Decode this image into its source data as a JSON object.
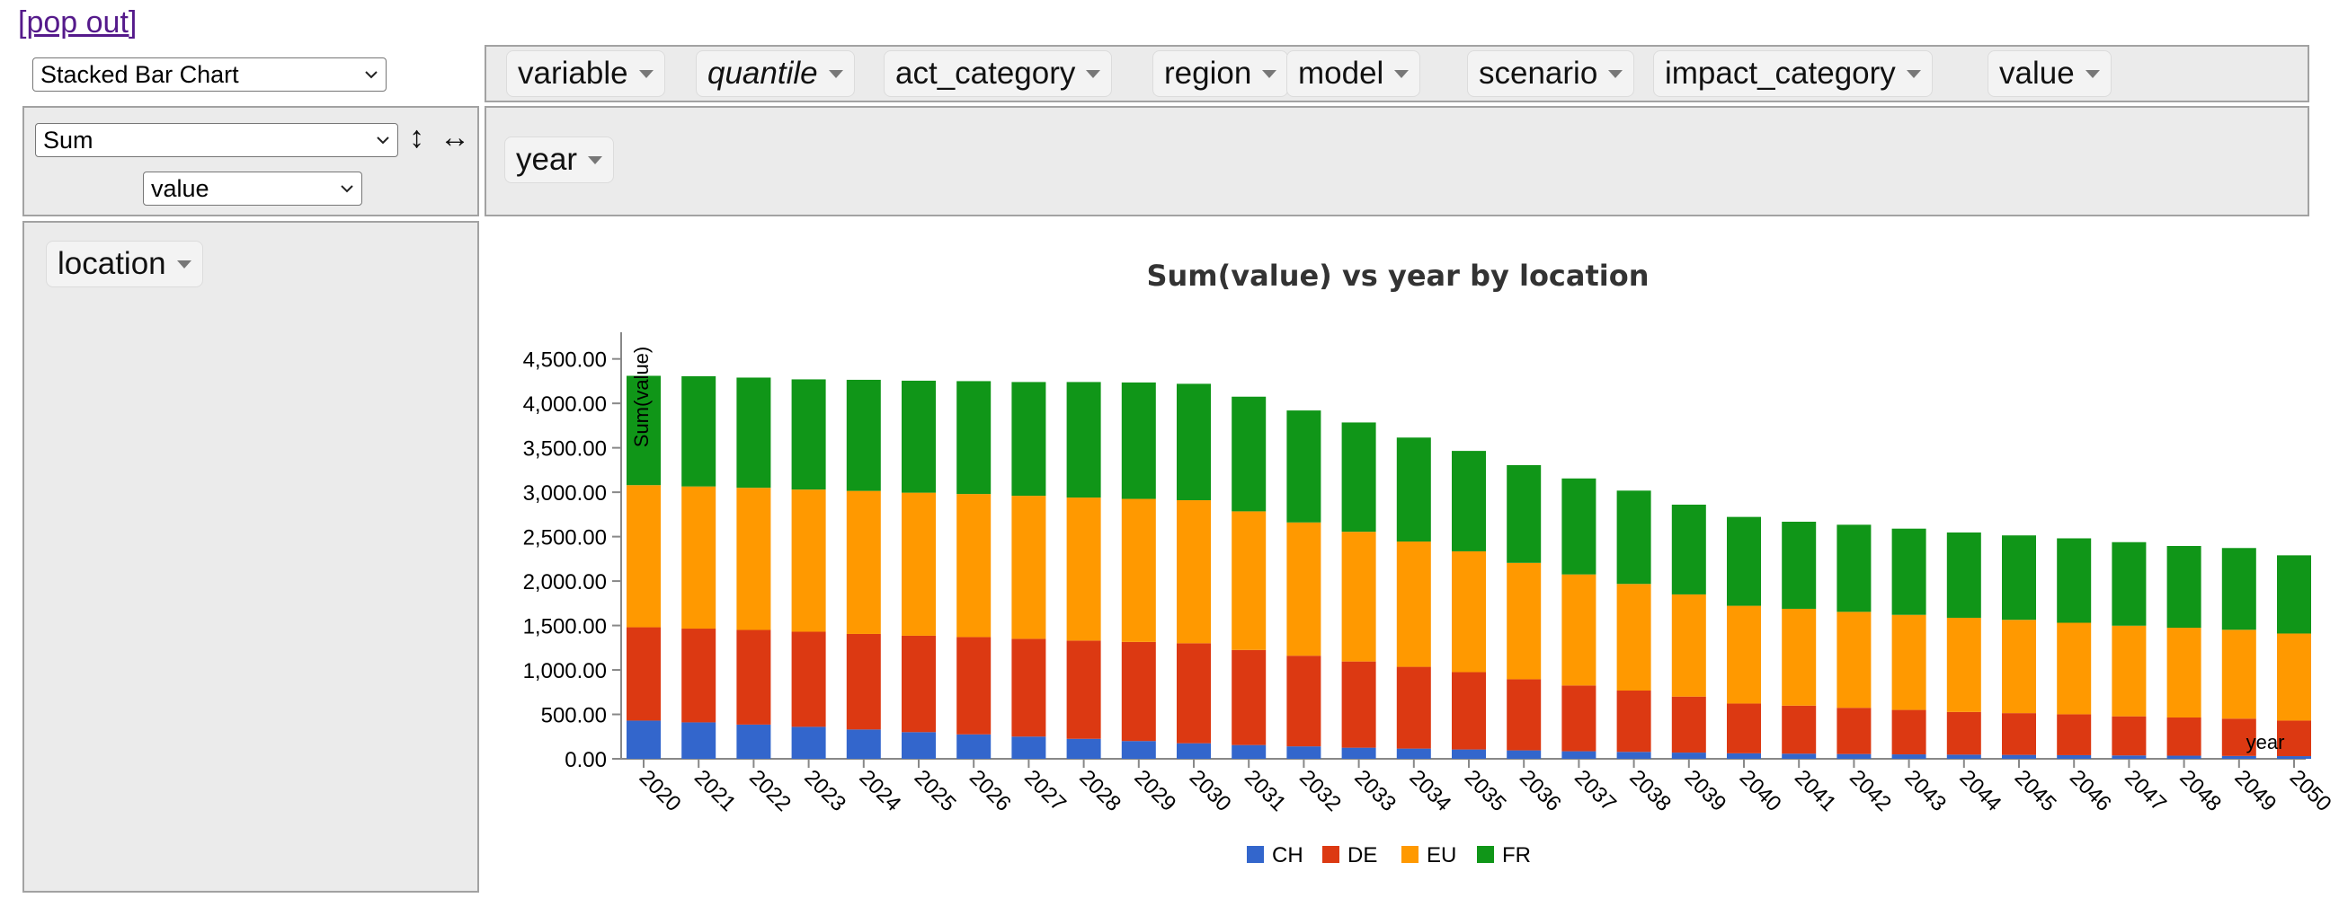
{
  "pop_out_label": "[pop out]",
  "renderer": {
    "selected": "Stacked Bar Chart"
  },
  "aggregator": {
    "selected": "Sum",
    "value_field": "value"
  },
  "controls": {
    "vertical_arrow": "↕",
    "horizontal_arrow": "↔"
  },
  "unused_attributes": [
    "variable",
    "quantile",
    "act_category",
    "region",
    "model",
    "scenario",
    "impact_category",
    "value"
  ],
  "col_attributes": [
    "year"
  ],
  "row_attributes": [
    "location"
  ],
  "chart_data": {
    "type": "bar",
    "stacked": true,
    "title": "Sum(value) vs year by location",
    "xlabel": "year",
    "ylabel": "Sum(value)",
    "ylim": [
      0,
      4800
    ],
    "yticks": [
      "0.00",
      "500.00",
      "1,000.00",
      "1,500.00",
      "2,000.00",
      "2,500.00",
      "3,000.00",
      "3,500.00",
      "4,000.00",
      "4,500.00"
    ],
    "ytick_values": [
      0,
      500,
      1000,
      1500,
      2000,
      2500,
      3000,
      3500,
      4000,
      4500
    ],
    "legend_position": "bottom",
    "categories": [
      "2020",
      "2021",
      "2022",
      "2023",
      "2024",
      "2025",
      "2026",
      "2027",
      "2028",
      "2029",
      "2030",
      "2031",
      "2032",
      "2033",
      "2034",
      "2035",
      "2036",
      "2037",
      "2038",
      "2039",
      "2040",
      "2041",
      "2042",
      "2043",
      "2044",
      "2045",
      "2046",
      "2047",
      "2048",
      "2049",
      "2050"
    ],
    "series": [
      {
        "name": "CH",
        "color": "#3366cc",
        "values": [
          430,
          410,
          385,
          360,
          330,
          300,
          275,
          250,
          225,
          200,
          175,
          155,
          140,
          125,
          115,
          105,
          95,
          85,
          78,
          70,
          62,
          58,
          54,
          50,
          47,
          44,
          41,
          38,
          35,
          32,
          30
        ]
      },
      {
        "name": "DE",
        "color": "#dc3912",
        "values": [
          1050,
          1055,
          1065,
          1070,
          1075,
          1085,
          1095,
          1100,
          1105,
          1115,
          1125,
          1070,
          1020,
          970,
          920,
          870,
          800,
          740,
          690,
          630,
          560,
          540,
          520,
          500,
          480,
          470,
          460,
          440,
          430,
          420,
          400
        ]
      },
      {
        "name": "EU",
        "color": "#ff9900",
        "values": [
          1600,
          1600,
          1600,
          1600,
          1610,
          1610,
          1610,
          1610,
          1610,
          1610,
          1610,
          1560,
          1500,
          1460,
          1410,
          1360,
          1310,
          1250,
          1200,
          1150,
          1100,
          1090,
          1080,
          1070,
          1060,
          1050,
          1030,
          1020,
          1010,
          1000,
          980
        ]
      },
      {
        "name": "FR",
        "color": "#109618",
        "values": [
          1230,
          1240,
          1240,
          1240,
          1250,
          1260,
          1270,
          1280,
          1300,
          1310,
          1310,
          1290,
          1260,
          1230,
          1170,
          1130,
          1100,
          1080,
          1050,
          1010,
          1000,
          980,
          980,
          970,
          960,
          950,
          950,
          940,
          920,
          920,
          880
        ]
      }
    ]
  }
}
